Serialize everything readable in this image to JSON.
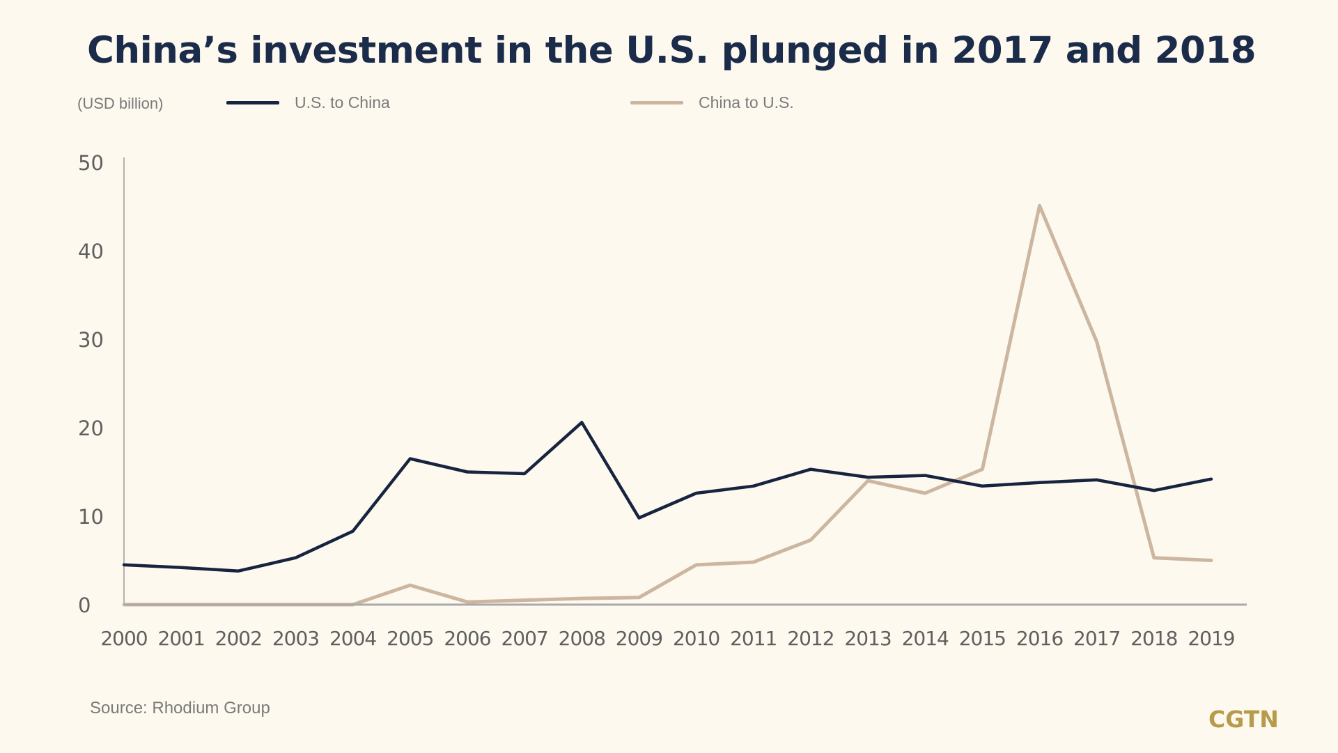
{
  "chart_data": {
    "type": "line",
    "title": "China’s investment in the U.S. plunged in 2017 and 2018",
    "ylabel": "(USD billion)",
    "xlabel": "",
    "ylim": [
      0,
      50
    ],
    "yticks": [
      0,
      10,
      20,
      30,
      40,
      50
    ],
    "x": [
      "2000",
      "2001",
      "2002",
      "2003",
      "2004",
      "2005",
      "2006",
      "2007",
      "2008",
      "2009",
      "2010",
      "2011",
      "2012",
      "2013",
      "2014",
      "2015",
      "2016",
      "2017",
      "2018",
      "2019"
    ],
    "series": [
      {
        "name": "U.S. to China",
        "color": "#17243f",
        "values": [
          4.5,
          4.2,
          3.8,
          5.3,
          8.3,
          16.5,
          15.0,
          14.8,
          20.6,
          9.8,
          12.6,
          13.4,
          15.3,
          14.4,
          14.6,
          13.4,
          13.8,
          14.1,
          12.9,
          14.2
        ]
      },
      {
        "name": "China to U.S.",
        "color": "#cdb6a0",
        "values": [
          0,
          0,
          0,
          0,
          0,
          2.2,
          0.3,
          0.5,
          0.7,
          0.8,
          4.5,
          4.8,
          7.3,
          14.0,
          12.6,
          15.3,
          45.1,
          29.7,
          5.3,
          5.0
        ]
      }
    ],
    "grid": false,
    "legend": "top"
  },
  "source": "Source: Rhodium Group",
  "logo": "CGTN",
  "colors": {
    "background": "#fdf9ef",
    "title": "#1b2b4a",
    "accent": "#b79a4a"
  }
}
